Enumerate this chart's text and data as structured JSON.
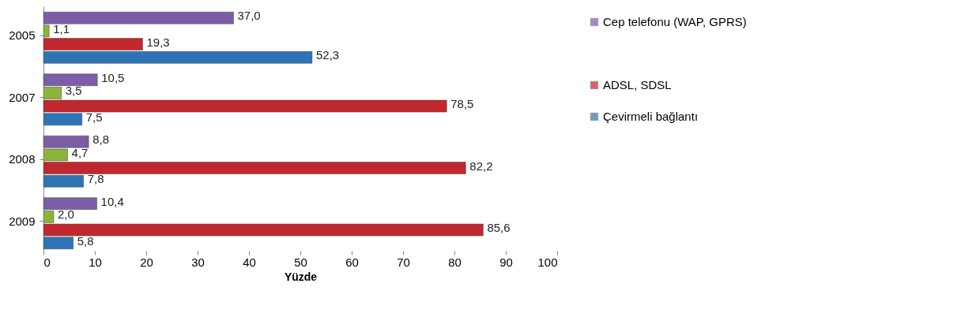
{
  "chart_data": {
    "type": "bar",
    "orientation": "horizontal",
    "xlabel": "Yüzde",
    "categories": [
      "2005",
      "2007",
      "2008",
      "2009"
    ],
    "series": [
      {
        "name": "Cep telefonu (WAP, GPRS)",
        "color": "#7b5ea7",
        "values": [
          37.0,
          10.5,
          8.8,
          10.4
        ],
        "value_labels": [
          "37,0",
          "10,5",
          "8,8",
          "10,4"
        ]
      },
      {
        "color": "#8cb43a",
        "values": [
          1.1,
          3.5,
          4.7,
          2.0
        ],
        "value_labels": [
          "1,1",
          "3,5",
          "4,7",
          "2,0"
        ]
      },
      {
        "name": "ADSL, SDSL",
        "color": "#c0282d",
        "values": [
          19.3,
          78.5,
          82.2,
          85.6
        ],
        "value_labels": [
          "19,3",
          "78,5",
          "82,2",
          "85,6"
        ]
      },
      {
        "name": "Çevirmeli bağlantı",
        "color": "#2e74b5",
        "values": [
          52.3,
          7.5,
          7.8,
          5.8
        ],
        "value_labels": [
          "52,3",
          "7,5",
          "7,8",
          "5,8"
        ]
      }
    ],
    "xlim": [
      0,
      100
    ],
    "xticks": [
      0,
      10,
      20,
      30,
      40,
      50,
      60,
      70,
      80,
      90,
      100
    ],
    "legend": "right"
  }
}
